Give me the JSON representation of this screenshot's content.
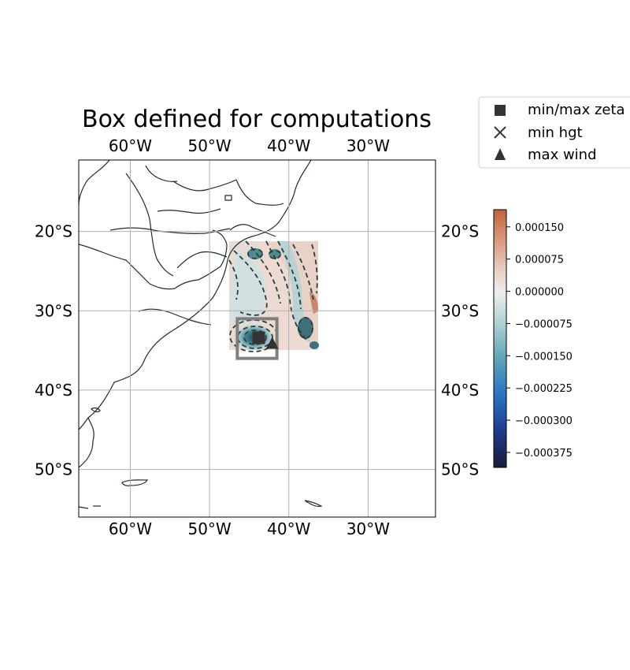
{
  "title": "Box defined for computations",
  "map": {
    "lon_range": [
      -66.5,
      -21.5
    ],
    "lat_range": [
      -56,
      -11
    ],
    "lon_ticks": [
      -60,
      -50,
      -40,
      -30
    ],
    "lon_tick_labels": [
      "60°W",
      "50°W",
      "40°W",
      "30°W"
    ],
    "lat_ticks": [
      -20,
      -30,
      -40,
      -50
    ],
    "lat_tick_labels": [
      "20°S",
      "30°S",
      "40°S",
      "50°S"
    ],
    "grid": true,
    "field_extent": {
      "lon": [
        -47.5,
        -36.2
      ],
      "lat": [
        -35,
        -21.5
      ]
    },
    "computation_box": {
      "lon": [
        -46.5,
        -41.5
      ],
      "lat": [
        -36
      ],
      "lat_top": -31
    },
    "markers": {
      "min_max_zeta": {
        "lon": -43.8,
        "lat": -33.4
      },
      "max_wind": {
        "lon": -42.1,
        "lat": -34.1
      }
    },
    "colors": {
      "coast": "#1f2d1f",
      "box": "#7f7f7f",
      "marker": "#333333",
      "contour": "#2c3e3a",
      "grid": "#b0b0b0"
    }
  },
  "legend": {
    "items": [
      {
        "marker": "square",
        "label": "min/max zeta"
      },
      {
        "marker": "x",
        "label": "min hgt"
      },
      {
        "marker": "triangle",
        "label": "max wind"
      }
    ]
  },
  "colorbar": {
    "range": [
      -0.00041,
      0.00019
    ],
    "ticks": [
      0.00015,
      7.5e-05,
      0.0,
      -7.5e-05,
      -0.00015,
      -0.000225,
      -0.0003,
      -0.000375
    ],
    "tick_labels": [
      "0.000150",
      "0.000075",
      "0.000000",
      "−0.000075",
      "−0.000150",
      "−0.000225",
      "−0.000300",
      "−0.000375"
    ],
    "stops": [
      "#1a1c3a",
      "#1f3a8a",
      "#2a73c4",
      "#5ea3b6",
      "#a9cfd3",
      "#eeeeee",
      "#e6c8bc",
      "#d8957a",
      "#c0623f"
    ]
  }
}
